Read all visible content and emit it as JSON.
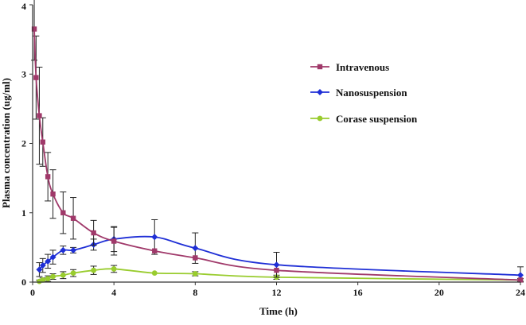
{
  "chart_data": {
    "type": "line",
    "title": "",
    "xlabel": "Time (h)",
    "ylabel": "Plasma concentration (ug/ml)",
    "xlim": [
      0,
      24
    ],
    "ylim": [
      0,
      4
    ],
    "xticks": [
      "0",
      "4",
      "8",
      "12",
      "16",
      "20",
      "24"
    ],
    "yticks": [
      "0",
      "1",
      "2",
      "3",
      "4"
    ],
    "grid": false,
    "legend_position": "top-right",
    "series": [
      {
        "name": "Intravenous",
        "color": "#a0396a",
        "marker": "square",
        "x": [
          0.08,
          0.17,
          0.33,
          0.5,
          0.75,
          1,
          1.5,
          2,
          3,
          4,
          6,
          8,
          12,
          24
        ],
        "y": [
          3.65,
          2.95,
          2.4,
          2.02,
          1.52,
          1.27,
          1.0,
          0.92,
          0.71,
          0.59,
          0.45,
          0.35,
          0.17,
          0.03
        ],
        "err": [
          0.45,
          0.6,
          0.7,
          0.35,
          0.35,
          0.35,
          0.3,
          0.3,
          0.18,
          0.2,
          0.0,
          0.0,
          0.0,
          0.0
        ]
      },
      {
        "name": "Nanosuspension",
        "color": "#1f2fd6",
        "marker": "diamond",
        "x": [
          0.33,
          0.5,
          0.75,
          1,
          1.5,
          2,
          3,
          4,
          6,
          8,
          12,
          24
        ],
        "y": [
          0.18,
          0.24,
          0.3,
          0.36,
          0.46,
          0.46,
          0.54,
          0.62,
          0.65,
          0.49,
          0.25,
          0.1
        ],
        "err": [
          0.1,
          0.1,
          0.1,
          0.1,
          0.06,
          0.04,
          0.08,
          0.18,
          0.25,
          0.22,
          0.18,
          0.12
        ]
      },
      {
        "name": "Corase suspension",
        "color": "#99cc2e",
        "marker": "circle",
        "x": [
          0.33,
          0.5,
          0.75,
          1,
          1.5,
          2,
          3,
          4,
          6,
          8,
          12,
          24
        ],
        "y": [
          0.01,
          0.03,
          0.05,
          0.08,
          0.1,
          0.13,
          0.17,
          0.19,
          0.13,
          0.12,
          0.07,
          0.03
        ],
        "err": [
          0.02,
          0.03,
          0.04,
          0.04,
          0.05,
          0.05,
          0.06,
          0.05,
          0.0,
          0.03,
          0.03,
          0.02
        ]
      }
    ]
  }
}
